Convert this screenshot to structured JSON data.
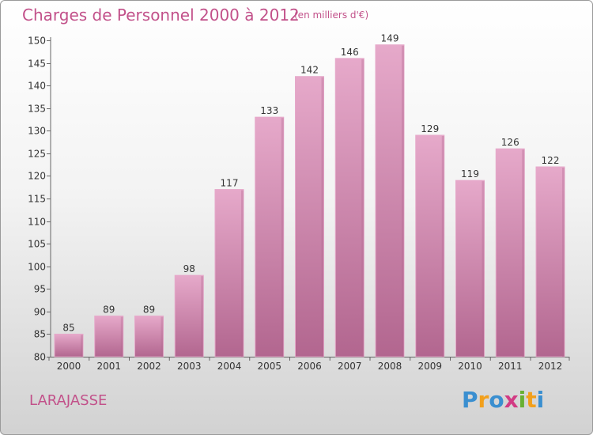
{
  "title": "Charges de Personnel 2000 à 2012",
  "subtitle": "(en milliers d'€)",
  "town": "LARAJASSE",
  "logo": {
    "text": "Proxiti",
    "letters": [
      {
        "ch": "P",
        "color": "#3a8fd0"
      },
      {
        "ch": "r",
        "color": "#f2a01c"
      },
      {
        "ch": "o",
        "color": "#3a8fd0"
      },
      {
        "ch": "x",
        "color": "#d23b84"
      },
      {
        "ch": "i",
        "color": "#68b032"
      },
      {
        "ch": "t",
        "color": "#f2a01c"
      },
      {
        "ch": "i",
        "color": "#3a8fd0"
      }
    ]
  },
  "colors": {
    "bar": "#d98bb5",
    "bar_light": "#e6a9ca",
    "bar_dark": "#b2668f",
    "title": "#c2518a"
  },
  "chart_data": {
    "type": "bar",
    "categories": [
      "2000",
      "2001",
      "2002",
      "2003",
      "2004",
      "2005",
      "2006",
      "2007",
      "2008",
      "2009",
      "2010",
      "2011",
      "2012"
    ],
    "values": [
      85,
      89,
      89,
      98,
      117,
      133,
      142,
      146,
      149,
      129,
      119,
      126,
      122
    ],
    "ylim": [
      80,
      150
    ],
    "yticks": [
      80,
      85,
      90,
      95,
      100,
      105,
      110,
      115,
      120,
      125,
      130,
      135,
      140,
      145,
      150
    ],
    "grid": false
  }
}
